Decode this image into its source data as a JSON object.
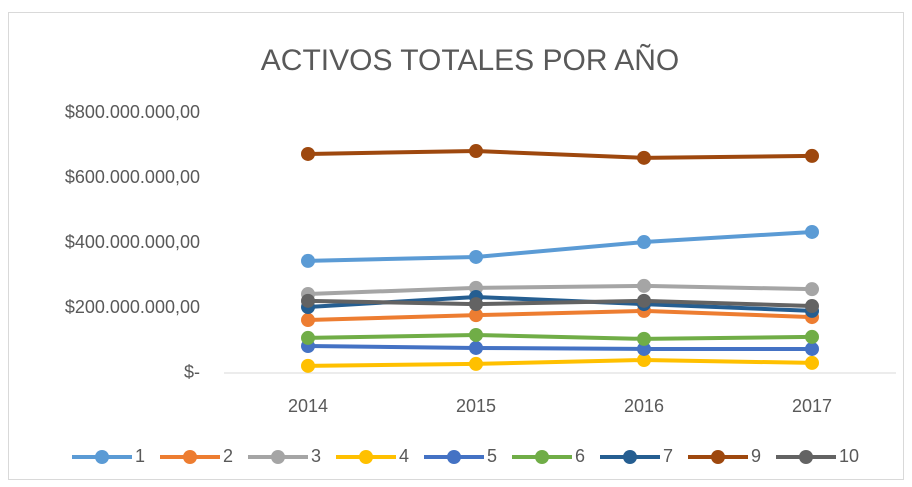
{
  "chart_data": {
    "type": "line",
    "title": "ACTIVOS TOTALES POR AÑO",
    "categories": [
      "2014",
      "2015",
      "2016",
      "2017"
    ],
    "ylim": [
      0,
      800000000
    ],
    "yticks": [
      {
        "value": 0,
        "label": "$-"
      },
      {
        "value": 200000000,
        "label": "$200.000.000,00"
      },
      {
        "value": 400000000,
        "label": "$400.000.000,00"
      },
      {
        "value": 600000000,
        "label": "$600.000.000,00"
      },
      {
        "value": 800000000,
        "label": "$800.000.000,00"
      }
    ],
    "grid": false,
    "legend": "bottom",
    "series": [
      {
        "name": "1",
        "color": "#5b9bd5",
        "values": [
          345000000,
          357000000,
          403000000,
          434000000
        ]
      },
      {
        "name": "2",
        "color": "#ed7d31",
        "values": [
          163000000,
          178000000,
          191000000,
          172000000
        ]
      },
      {
        "name": "3",
        "color": "#a5a5a5",
        "values": [
          243000000,
          262000000,
          268000000,
          258000000
        ]
      },
      {
        "name": "4",
        "color": "#ffc000",
        "values": [
          22000000,
          28000000,
          40000000,
          31000000
        ]
      },
      {
        "name": "5",
        "color": "#4472c4",
        "values": [
          83000000,
          77000000,
          74000000,
          74000000
        ]
      },
      {
        "name": "6",
        "color": "#70ad47",
        "values": [
          108000000,
          117000000,
          105000000,
          111000000
        ]
      },
      {
        "name": "7",
        "color": "#255e91",
        "values": [
          203000000,
          234000000,
          212000000,
          191000000
        ]
      },
      {
        "name": "9",
        "color": "#9e480e",
        "values": [
          674000000,
          683000000,
          662000000,
          668000000
        ]
      },
      {
        "name": "10",
        "color": "#636363",
        "values": [
          222000000,
          212000000,
          222000000,
          206000000
        ]
      }
    ]
  }
}
